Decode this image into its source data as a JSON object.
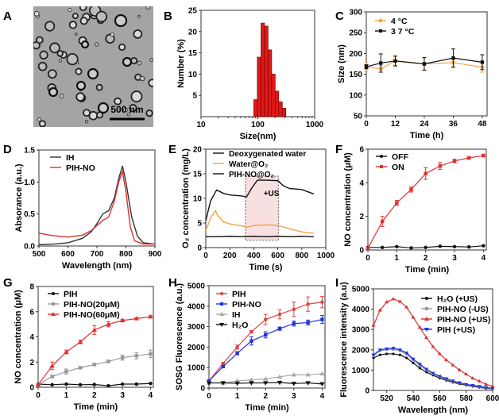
{
  "panel_letters": [
    "A",
    "B",
    "C",
    "D",
    "E",
    "F",
    "G",
    "H",
    "I"
  ],
  "tem_image": {
    "scale_bar_label": "500 nm"
  },
  "chart_data": [
    {
      "panel": "B",
      "type": "bar",
      "xscale": "log",
      "xlim": [
        10,
        1000
      ],
      "ylim": [
        0,
        25
      ],
      "xticks": [
        10,
        100,
        1000
      ],
      "xtick_labels": [
        "10",
        "100",
        "1000"
      ],
      "yticks": [
        5,
        10,
        15,
        20,
        25
      ],
      "ytick_labels": [
        "5",
        "10",
        "15",
        "20",
        "25"
      ],
      "xlabel": "Size(nm)",
      "ylabel": "Number (%)",
      "bars": {
        "x": [
          91,
          105,
          122,
          141,
          163,
          188,
          217,
          251,
          290
        ],
        "values": [
          4,
          14,
          22,
          21.3,
          15.7,
          10,
          6,
          3.5,
          2
        ],
        "color": "#e01818"
      }
    },
    {
      "panel": "C",
      "type": "line",
      "xlim": [
        0,
        50
      ],
      "ylim": [
        50,
        300
      ],
      "xticks": [
        0,
        12,
        24,
        36,
        48
      ],
      "xtick_labels": [
        "0",
        "12",
        "24",
        "36",
        "48"
      ],
      "yticks": [
        50,
        100,
        150,
        200,
        250,
        300
      ],
      "ytick_labels": [
        "50",
        "100",
        "150",
        "200",
        "250",
        "300"
      ],
      "xlabel": "Time (h)",
      "ylabel": "Size (nm)",
      "legend": "top-left",
      "series": [
        {
          "name": "4 °C",
          "color": "#f0a24a",
          "marker": "diamond",
          "x": [
            0,
            6,
            12,
            24,
            36,
            48
          ],
          "y": [
            168,
            163,
            182,
            175,
            178,
            167
          ],
          "err": [
            10,
            8,
            10,
            15,
            10,
            12
          ]
        },
        {
          "name": "3 7 °C",
          "color": "#111111",
          "marker": "square",
          "x": [
            0,
            6,
            12,
            24,
            36,
            48
          ],
          "y": [
            168,
            177,
            182,
            175,
            189,
            179
          ],
          "err": [
            5,
            22,
            12,
            15,
            22,
            18
          ]
        }
      ]
    },
    {
      "panel": "D",
      "type": "line",
      "xlim": [
        500,
        900
      ],
      "ylim": [
        0,
        1.5
      ],
      "xticks": [
        500,
        600,
        700,
        800,
        900
      ],
      "xtick_labels": [
        "500",
        "600",
        "700",
        "800",
        "900"
      ],
      "yticks": [
        0,
        0.5,
        1,
        1.5
      ],
      "ytick_labels": [
        "0.0",
        "0.5",
        "1.0",
        "1.5"
      ],
      "xlabel": "Wavelength (nm)",
      "ylabel": "Absorance (a.u.)",
      "legend": "top-left",
      "series": [
        {
          "name": "IH",
          "color": "#333333",
          "marker": "none",
          "x": [
            500,
            550,
            600,
            650,
            680,
            700,
            720,
            740,
            760,
            775,
            788,
            800,
            820,
            840,
            860,
            900
          ],
          "y": [
            0.02,
            0.03,
            0.05,
            0.12,
            0.22,
            0.35,
            0.5,
            0.55,
            0.75,
            1.05,
            1.25,
            1.0,
            0.45,
            0.15,
            0.05,
            0.03
          ]
        },
        {
          "name": "PIH-NO",
          "color": "#e0302f",
          "marker": "none",
          "x": [
            500,
            550,
            600,
            650,
            680,
            700,
            720,
            740,
            760,
            775,
            788,
            800,
            815,
            830,
            860,
            900
          ],
          "y": [
            0.2,
            0.16,
            0.14,
            0.17,
            0.24,
            0.32,
            0.4,
            0.45,
            0.7,
            1.0,
            1.16,
            0.85,
            0.3,
            0.08,
            0.03,
            0.03
          ]
        }
      ]
    },
    {
      "panel": "E",
      "type": "line",
      "xlim": [
        0,
        1000
      ],
      "ylim": [
        0,
        20
      ],
      "xticks": [
        0,
        200,
        400,
        600,
        800,
        1000
      ],
      "xtick_labels": [
        "0",
        "200",
        "400",
        "600",
        "800",
        "1000"
      ],
      "yticks": [
        0,
        5,
        10,
        15,
        20
      ],
      "ytick_labels": [
        "0",
        "5",
        "10",
        "15",
        "20"
      ],
      "xlabel": "Time (s)",
      "ylabel": "O₂ concentration (mg/L)",
      "legend": "top",
      "annotation": {
        "text": "+US",
        "x_range": [
          330,
          605
        ],
        "y_range": [
          1.5,
          14.5
        ],
        "color": "#f9e0e0"
      },
      "series": [
        {
          "name": "Deoxygenated water",
          "color": "#111111",
          "marker": "none",
          "x": [
            0,
            100,
            200,
            300,
            400,
            500,
            600,
            700,
            800,
            900
          ],
          "y": [
            2.2,
            2.2,
            2.3,
            2.2,
            2.3,
            2.2,
            2.3,
            2.2,
            2.3,
            2.2
          ]
        },
        {
          "name": "Water@O₂",
          "color": "#f0a24a",
          "marker": "none",
          "x": [
            0,
            50,
            80,
            100,
            150,
            200,
            300,
            340,
            400,
            500,
            600,
            700,
            800,
            900
          ],
          "y": [
            3.5,
            6.5,
            7.5,
            6.5,
            5.2,
            4.8,
            4.4,
            4.1,
            4.5,
            4.6,
            4.5,
            3.8,
            3.2,
            2.9
          ]
        },
        {
          "name": "PIH-NO@O₂",
          "color": "#111111",
          "marker": "none",
          "x": [
            0,
            40,
            90,
            150,
            200,
            300,
            340,
            380,
            430,
            500,
            600,
            650,
            700,
            800,
            900
          ],
          "y": [
            5.5,
            9.5,
            11.7,
            11,
            10.7,
            10.5,
            10.3,
            12,
            13.7,
            13.7,
            13.6,
            12.5,
            12,
            11.8,
            10.9
          ]
        }
      ]
    },
    {
      "panel": "F",
      "type": "line",
      "xlim": [
        0,
        4.1
      ],
      "ylim": [
        0,
        6
      ],
      "xticks": [
        0,
        1,
        2,
        3,
        4
      ],
      "xtick_labels": [
        "0",
        "1",
        "2",
        "3",
        "4"
      ],
      "yticks": [
        0,
        2,
        4,
        6
      ],
      "ytick_labels": [
        "0",
        "2",
        "4",
        "6"
      ],
      "xlabel": "Time (min)",
      "ylabel": "NO concentration (μM)",
      "legend": "top-left",
      "series": [
        {
          "name": "OFF",
          "color": "#111111",
          "marker": "circle",
          "x": [
            0,
            0.5,
            1,
            1.5,
            2,
            2.5,
            3,
            3.5,
            4
          ],
          "y": [
            0.15,
            0.15,
            0.2,
            0.12,
            0.15,
            0.22,
            0.2,
            0.18,
            0.25
          ]
        },
        {
          "name": "ON",
          "color": "#e0302f",
          "marker": "square",
          "x": [
            0,
            0.5,
            1,
            1.5,
            2,
            2.5,
            3,
            3.5,
            4
          ],
          "y": [
            0.1,
            1.7,
            2.8,
            3.6,
            4.55,
            5.0,
            5.3,
            5.48,
            5.62
          ],
          "err": [
            0.05,
            0.3,
            0.15,
            0.15,
            0.35,
            0.2,
            0.1,
            0.08,
            0.08
          ]
        }
      ]
    },
    {
      "panel": "G",
      "type": "line",
      "xlim": [
        0,
        4.1
      ],
      "ylim": [
        0,
        8
      ],
      "xticks": [
        0,
        1,
        2,
        3,
        4
      ],
      "xtick_labels": [
        "0",
        "1",
        "2",
        "3",
        "4"
      ],
      "yticks": [
        0,
        2,
        4,
        6,
        8
      ],
      "ytick_labels": [
        "0",
        "2",
        "4",
        "6",
        "8"
      ],
      "xlabel": "Time (min)",
      "ylabel": "NO concentration (μM)",
      "legend": "top-left",
      "series": [
        {
          "name": "PIH",
          "color": "#111111",
          "marker": "circle",
          "x": [
            0,
            0.5,
            1,
            1.5,
            2,
            2.5,
            3,
            3.5,
            4
          ],
          "y": [
            0.25,
            0.2,
            0.25,
            0.2,
            0.22,
            0.12,
            0.25,
            0.25,
            0.3
          ]
        },
        {
          "name": "PIH-NO(20μM)",
          "color": "#999999",
          "marker": "square",
          "x": [
            0,
            0.5,
            1,
            1.5,
            2,
            2.5,
            3,
            3.5,
            4
          ],
          "y": [
            0.2,
            0.85,
            1.25,
            1.55,
            1.8,
            2.05,
            2.35,
            2.5,
            2.65
          ],
          "err": [
            0.05,
            0.1,
            0.2,
            0.1,
            0.1,
            0.1,
            0.2,
            0.25,
            0.3
          ]
        },
        {
          "name": "PIH-NO(60μM)",
          "color": "#e0302f",
          "marker": "triangle",
          "x": [
            0,
            0.5,
            1,
            1.5,
            2,
            2.5,
            3,
            3.5,
            4
          ],
          "y": [
            0.2,
            1.7,
            2.8,
            3.6,
            4.55,
            5.0,
            5.3,
            5.45,
            5.6
          ],
          "err": [
            0.05,
            0.3,
            0.15,
            0.15,
            0.35,
            0.2,
            0.1,
            0.08,
            0.08
          ]
        }
      ]
    },
    {
      "panel": "H",
      "type": "line",
      "xlim": [
        0,
        4.1
      ],
      "ylim": [
        0,
        5000
      ],
      "xticks": [
        0,
        1,
        2,
        3,
        4
      ],
      "xtick_labels": [
        "0",
        "1",
        "2",
        "3",
        "4"
      ],
      "yticks": [
        0,
        1000,
        2000,
        3000,
        4000,
        5000
      ],
      "ytick_labels": [
        "0",
        "1000",
        "2000",
        "3000",
        "4000",
        "5000"
      ],
      "xlabel": "Time (min)",
      "ylabel": "SOSG Fluorescence (a.u.)",
      "legend": "top-left",
      "series": [
        {
          "name": "PIH",
          "color": "#e04040",
          "marker": "circle",
          "x": [
            0,
            0.5,
            1,
            1.5,
            2,
            2.5,
            3,
            3.5,
            4
          ],
          "y": [
            350,
            1200,
            2000,
            2750,
            3350,
            3600,
            3850,
            4100,
            4200
          ],
          "err": [
            50,
            60,
            100,
            60,
            250,
            220,
            350,
            350,
            280
          ]
        },
        {
          "name": "PIH-NO",
          "color": "#2233dd",
          "marker": "square",
          "x": [
            0,
            0.5,
            1,
            1.5,
            2,
            2.5,
            3,
            3.5,
            4
          ],
          "y": [
            350,
            1050,
            1700,
            2300,
            2600,
            2900,
            3150,
            3200,
            3350
          ],
          "err": [
            50,
            50,
            80,
            200,
            150,
            80,
            120,
            120,
            200
          ]
        },
        {
          "name": "IH",
          "color": "#aaaaaa",
          "marker": "triangle",
          "x": [
            0,
            0.5,
            1,
            1.5,
            2,
            2.5,
            3,
            3.5,
            4
          ],
          "y": [
            250,
            250,
            350,
            400,
            450,
            550,
            650,
            650,
            700
          ]
        },
        {
          "name": "H₂O",
          "color": "#111111",
          "marker": "triangle-down",
          "x": [
            0,
            0.5,
            1,
            1.5,
            2,
            2.5,
            3,
            3.5,
            4
          ],
          "y": [
            250,
            250,
            230,
            250,
            250,
            270,
            220,
            250,
            200
          ]
        }
      ]
    },
    {
      "panel": "I",
      "type": "line",
      "xlim": [
        510,
        600
      ],
      "ylim": [
        0,
        5000
      ],
      "xticks": [
        520,
        540,
        560,
        580,
        600
      ],
      "xtick_labels": [
        "520",
        "540",
        "560",
        "580",
        "600"
      ],
      "yticks": [
        0,
        1000,
        2000,
        3000,
        4000,
        5000
      ],
      "ytick_labels": [
        "0",
        "1000",
        "2000",
        "3000",
        "4000",
        "5000"
      ],
      "xlabel": "Wavelength (nm)",
      "ylabel": "Fluorescence intensity (a.u)",
      "legend": "top-right",
      "series": [
        {
          "name": "H₂O (+US)",
          "color": "#111111",
          "marker": "circle",
          "x": [
            510,
            515,
            520,
            525,
            530,
            535,
            540,
            545,
            550,
            555,
            560,
            565,
            570,
            575,
            580,
            585,
            590,
            595,
            600
          ],
          "y": [
            1600,
            1750,
            1800,
            1800,
            1750,
            1600,
            1350,
            1100,
            900,
            750,
            600,
            500,
            400,
            320,
            260,
            200,
            150,
            100,
            80
          ]
        },
        {
          "name": "PIH-NO (-US)",
          "color": "#999999",
          "marker": "square",
          "x": [
            510,
            515,
            520,
            525,
            530,
            535,
            540,
            545,
            550,
            555,
            560,
            565,
            570,
            575,
            580,
            585,
            590,
            595,
            600
          ],
          "y": [
            1700,
            1950,
            2000,
            2020,
            1950,
            1780,
            1480,
            1230,
            1000,
            810,
            660,
            550,
            440,
            360,
            290,
            230,
            180,
            130,
            90
          ]
        },
        {
          "name": "PIH-NO (+US)",
          "color": "#e0302f",
          "marker": "triangle",
          "x": [
            510,
            515,
            520,
            525,
            530,
            535,
            540,
            545,
            550,
            555,
            560,
            565,
            570,
            575,
            580,
            585,
            590,
            595,
            600
          ],
          "y": [
            3200,
            3950,
            4350,
            4500,
            4380,
            4100,
            3600,
            3100,
            2600,
            2150,
            1800,
            1500,
            1250,
            1000,
            800,
            600,
            450,
            300,
            200
          ]
        },
        {
          "name": "PIH (+US)",
          "color": "#2233dd",
          "marker": "triangle-down",
          "x": [
            510,
            515,
            520,
            525,
            530,
            535,
            540,
            545,
            550,
            555,
            560,
            565,
            570,
            575,
            580,
            585,
            590,
            595,
            600
          ],
          "y": [
            1750,
            2000,
            2050,
            2080,
            2000,
            1850,
            1550,
            1300,
            1050,
            850,
            700,
            580,
            470,
            380,
            300,
            250,
            200,
            150,
            100
          ]
        }
      ]
    }
  ]
}
